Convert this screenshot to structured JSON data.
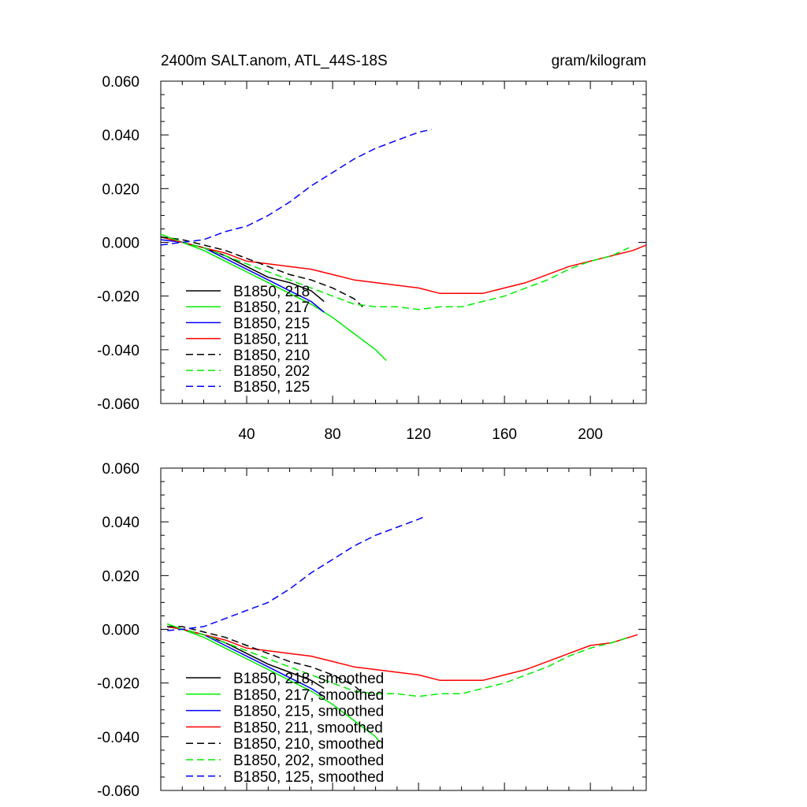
{
  "chart_data": [
    {
      "type": "line",
      "title": "2400m SALT.anom, ATL_44S-18S",
      "units": "gram/kilogram",
      "xlim": [
        0,
        226
      ],
      "ylim": [
        -0.06,
        0.06
      ],
      "x_ticks": [
        40,
        80,
        120,
        160,
        200
      ],
      "x_tick_labels": [
        "40",
        "80",
        "120",
        "160",
        "200"
      ],
      "y_ticks": [
        0.06,
        0.04,
        0.02,
        0.0,
        -0.02,
        -0.04,
        -0.06
      ],
      "y_tick_labels": [
        "0.060",
        "0.040",
        "0.020",
        "0.000",
        "-0.020",
        "-0.040",
        "-0.060"
      ],
      "legend_position": "bottom-left",
      "series": [
        {
          "name": "B1850, 218",
          "color": "#000000",
          "dash": "solid",
          "x": [
            0,
            10,
            20,
            30,
            40,
            50,
            60,
            70,
            76
          ],
          "y": [
            0.002,
            0.0,
            -0.002,
            -0.005,
            -0.009,
            -0.013,
            -0.015,
            -0.018,
            -0.022
          ]
        },
        {
          "name": "B1850, 217",
          "color": "#00ee00",
          "dash": "solid",
          "x": [
            0,
            10,
            20,
            30,
            40,
            50,
            60,
            70,
            80,
            90,
            100,
            105
          ],
          "y": [
            0.003,
            0.0,
            -0.003,
            -0.007,
            -0.011,
            -0.015,
            -0.019,
            -0.023,
            -0.028,
            -0.034,
            -0.04,
            -0.044
          ]
        },
        {
          "name": "B1850, 215",
          "color": "#0000ff",
          "dash": "solid",
          "x": [
            0,
            10,
            20,
            30,
            40,
            50,
            60,
            70,
            76
          ],
          "y": [
            0.001,
            0.0,
            -0.002,
            -0.006,
            -0.01,
            -0.014,
            -0.018,
            -0.022,
            -0.026
          ]
        },
        {
          "name": "B1850, 211",
          "color": "#ff0000",
          "dash": "solid",
          "x": [
            0,
            10,
            20,
            30,
            40,
            50,
            60,
            70,
            80,
            90,
            100,
            110,
            120,
            130,
            140,
            150,
            160,
            170,
            180,
            190,
            200,
            210,
            220,
            226
          ],
          "y": [
            0.002,
            0.0,
            -0.002,
            -0.004,
            -0.007,
            -0.008,
            -0.009,
            -0.01,
            -0.012,
            -0.014,
            -0.015,
            -0.016,
            -0.017,
            -0.019,
            -0.019,
            -0.019,
            -0.017,
            -0.015,
            -0.012,
            -0.009,
            -0.007,
            -0.005,
            -0.003,
            -0.001
          ]
        },
        {
          "name": "B1850, 210",
          "color": "#000000",
          "dash": "dashed",
          "x": [
            0,
            10,
            20,
            30,
            40,
            50,
            60,
            70,
            80,
            90,
            94
          ],
          "y": [
            0.002,
            0.001,
            -0.001,
            -0.003,
            -0.006,
            -0.009,
            -0.012,
            -0.014,
            -0.017,
            -0.021,
            -0.024
          ]
        },
        {
          "name": "B1850, 202",
          "color": "#00ee00",
          "dash": "dashed",
          "x": [
            0,
            10,
            20,
            30,
            40,
            50,
            60,
            70,
            80,
            90,
            100,
            110,
            120,
            130,
            140,
            150,
            160,
            170,
            180,
            190,
            200,
            210,
            218
          ],
          "y": [
            0.003,
            0.0,
            -0.002,
            -0.005,
            -0.008,
            -0.011,
            -0.014,
            -0.017,
            -0.02,
            -0.023,
            -0.024,
            -0.024,
            -0.025,
            -0.024,
            -0.024,
            -0.022,
            -0.02,
            -0.017,
            -0.014,
            -0.01,
            -0.007,
            -0.005,
            -0.002
          ]
        },
        {
          "name": "B1850, 125",
          "color": "#0000ff",
          "dash": "dashed",
          "x": [
            0,
            10,
            20,
            30,
            40,
            50,
            60,
            70,
            80,
            90,
            100,
            110,
            120,
            126
          ],
          "y": [
            -0.001,
            0.0,
            0.001,
            0.004,
            0.006,
            0.01,
            0.015,
            0.021,
            0.026,
            0.031,
            0.035,
            0.038,
            0.041,
            0.042
          ]
        }
      ]
    },
    {
      "type": "line",
      "title": "",
      "units": "",
      "xlim": [
        0,
        226
      ],
      "ylim": [
        -0.06,
        0.06
      ],
      "x_ticks": [
        40,
        80,
        120,
        160,
        200
      ],
      "x_tick_labels": [],
      "y_ticks": [
        0.06,
        0.04,
        0.02,
        0.0,
        -0.02,
        -0.04,
        -0.06
      ],
      "y_tick_labels": [
        "0.060",
        "0.040",
        "0.020",
        "0.000",
        "-0.020",
        "-0.040",
        "-0.060"
      ],
      "legend_position": "bottom-left",
      "series": [
        {
          "name": "B1850, 218, smoothed",
          "color": "#000000",
          "dash": "solid",
          "x": [
            3,
            10,
            20,
            30,
            40,
            50,
            60,
            70,
            76
          ],
          "y": [
            0.001,
            0.0,
            -0.002,
            -0.005,
            -0.009,
            -0.013,
            -0.016,
            -0.019,
            -0.022
          ]
        },
        {
          "name": "B1850, 217, smoothed",
          "color": "#00ee00",
          "dash": "solid",
          "x": [
            3,
            10,
            20,
            30,
            40,
            50,
            60,
            70,
            80,
            90,
            100,
            102
          ],
          "y": [
            0.002,
            0.0,
            -0.003,
            -0.007,
            -0.011,
            -0.015,
            -0.019,
            -0.023,
            -0.028,
            -0.034,
            -0.04,
            -0.042
          ]
        },
        {
          "name": "B1850, 215, smoothed",
          "color": "#0000ff",
          "dash": "solid",
          "x": [
            3,
            10,
            20,
            30,
            40,
            50,
            60,
            70,
            76
          ],
          "y": [
            0.001,
            0.0,
            -0.002,
            -0.006,
            -0.01,
            -0.014,
            -0.018,
            -0.022,
            -0.025
          ]
        },
        {
          "name": "B1850, 211, smoothed",
          "color": "#ff0000",
          "dash": "solid",
          "x": [
            3,
            10,
            20,
            30,
            40,
            50,
            60,
            70,
            80,
            90,
            100,
            110,
            120,
            130,
            140,
            150,
            160,
            170,
            180,
            190,
            200,
            210,
            222
          ],
          "y": [
            0.001,
            0.0,
            -0.002,
            -0.004,
            -0.007,
            -0.008,
            -0.009,
            -0.01,
            -0.012,
            -0.014,
            -0.015,
            -0.016,
            -0.017,
            -0.019,
            -0.019,
            -0.019,
            -0.017,
            -0.015,
            -0.012,
            -0.009,
            -0.006,
            -0.005,
            -0.002
          ]
        },
        {
          "name": "B1850, 210, smoothed",
          "color": "#000000",
          "dash": "dashed",
          "x": [
            3,
            10,
            20,
            30,
            40,
            50,
            60,
            70,
            80,
            90,
            93
          ],
          "y": [
            0.001,
            0.001,
            -0.001,
            -0.003,
            -0.006,
            -0.009,
            -0.012,
            -0.014,
            -0.017,
            -0.021,
            -0.023
          ]
        },
        {
          "name": "B1850, 202, smoothed",
          "color": "#00ee00",
          "dash": "dashed",
          "x": [
            3,
            10,
            20,
            30,
            40,
            50,
            60,
            70,
            80,
            90,
            100,
            110,
            120,
            130,
            140,
            150,
            160,
            170,
            180,
            190,
            200,
            210,
            218
          ],
          "y": [
            0.002,
            0.0,
            -0.002,
            -0.005,
            -0.008,
            -0.011,
            -0.014,
            -0.017,
            -0.02,
            -0.023,
            -0.024,
            -0.024,
            -0.025,
            -0.024,
            -0.024,
            -0.022,
            -0.02,
            -0.017,
            -0.014,
            -0.01,
            -0.007,
            -0.005,
            -0.003
          ]
        },
        {
          "name": "B1850, 125, smoothed",
          "color": "#0000ff",
          "dash": "dashed",
          "x": [
            3,
            10,
            20,
            30,
            40,
            50,
            60,
            70,
            80,
            90,
            100,
            110,
            120,
            123
          ],
          "y": [
            -0.0005,
            0.0,
            0.001,
            0.004,
            0.007,
            0.01,
            0.015,
            0.021,
            0.026,
            0.031,
            0.035,
            0.038,
            0.041,
            0.042
          ]
        }
      ]
    }
  ]
}
